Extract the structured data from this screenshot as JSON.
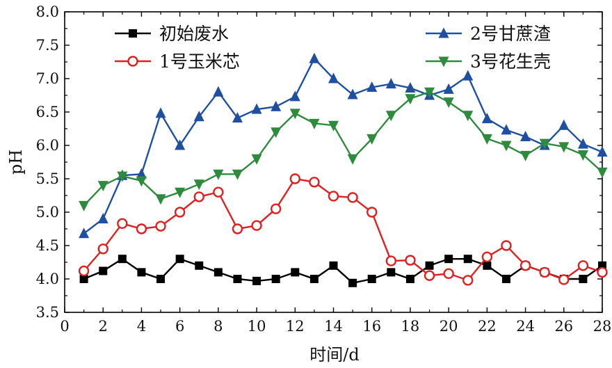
{
  "chart_data": {
    "type": "line",
    "xlabel": "时间/d",
    "ylabel": "pH",
    "xlim": [
      0,
      28
    ],
    "ylim": [
      3.5,
      8.0
    ],
    "x_ticks": [
      "0",
      "2",
      "4",
      "6",
      "8",
      "10",
      "12",
      "14",
      "16",
      "18",
      "20",
      "22",
      "24",
      "26",
      "28"
    ],
    "y_ticks": [
      "3.5",
      "4.0",
      "4.5",
      "5.0",
      "5.5",
      "6.0",
      "6.5",
      "7.0",
      "7.5",
      "8.0"
    ],
    "grid": false,
    "legend": "top",
    "x": [
      1,
      2,
      3,
      4,
      5,
      6,
      7,
      8,
      9,
      10,
      11,
      12,
      13,
      14,
      15,
      16,
      17,
      18,
      19,
      20,
      21,
      22,
      23,
      24,
      25,
      26,
      27,
      28
    ],
    "series": [
      {
        "name": "初始废水",
        "color": "#000000",
        "marker": "square",
        "values": [
          4.0,
          4.12,
          4.3,
          4.1,
          4.0,
          4.3,
          4.2,
          4.1,
          4.0,
          3.97,
          4.0,
          4.1,
          4.0,
          4.2,
          3.94,
          4.0,
          4.1,
          4.0,
          4.2,
          4.3,
          4.3,
          4.2,
          4.0,
          4.2,
          4.1,
          4.0,
          4.0,
          4.2
        ]
      },
      {
        "name": "1号玉米芯",
        "color": "#e02020",
        "marker": "circle",
        "values": [
          4.12,
          4.45,
          4.83,
          4.75,
          4.79,
          5.0,
          5.23,
          5.3,
          4.75,
          4.8,
          5.05,
          5.5,
          5.45,
          5.24,
          5.22,
          5.0,
          4.27,
          4.28,
          4.05,
          4.08,
          3.98,
          4.33,
          4.5,
          4.2,
          4.1,
          3.99,
          4.2,
          4.1
        ]
      },
      {
        "name": "2号甘蔗渣",
        "color": "#1f4fa0",
        "marker": "triangle-up",
        "values": [
          4.68,
          4.9,
          5.55,
          5.57,
          6.48,
          6.0,
          6.43,
          6.8,
          6.41,
          6.54,
          6.58,
          6.73,
          7.3,
          7.0,
          6.76,
          6.87,
          6.92,
          6.86,
          6.75,
          6.84,
          7.04,
          6.4,
          6.23,
          6.13,
          6.0,
          6.3,
          6.02,
          5.9
        ]
      },
      {
        "name": "3号花生壳",
        "color": "#2e8b3e",
        "marker": "triangle-down",
        "values": [
          5.1,
          5.4,
          5.54,
          5.47,
          5.2,
          5.3,
          5.42,
          5.57,
          5.57,
          5.8,
          6.2,
          6.48,
          6.33,
          6.3,
          5.8,
          6.1,
          6.45,
          6.7,
          6.8,
          6.65,
          6.45,
          6.1,
          6.0,
          5.85,
          6.03,
          5.98,
          5.86,
          5.6
        ]
      }
    ]
  }
}
